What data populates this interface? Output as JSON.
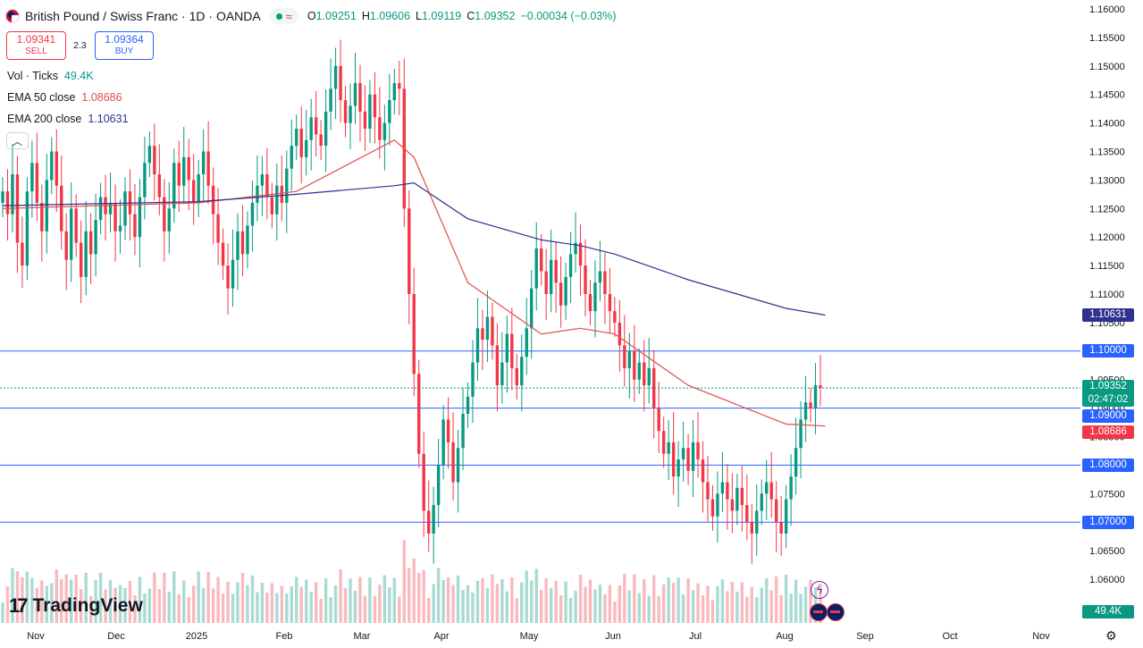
{
  "header": {
    "title": "British Pound / Swiss Franc · 1D · OANDA",
    "status_icon": "wave-icon",
    "ohlc": [
      {
        "k": "O",
        "v": "1.09251"
      },
      {
        "k": "H",
        "v": "1.09606"
      },
      {
        "k": "L",
        "v": "1.09119"
      },
      {
        "k": "C",
        "v": "1.09352"
      },
      {
        "k": "",
        "v": "−0.00034 (−0.03%)"
      }
    ]
  },
  "trade": {
    "sell_price": "1.09341",
    "sell_label": "SELL",
    "spread": "2.3",
    "buy_price": "1.09364",
    "buy_label": "BUY"
  },
  "legend": {
    "vol_label": "Vol · Ticks",
    "vol_value": "49.4K",
    "ema50_label": "EMA 50 close",
    "ema50_value": "1.08686",
    "ema200_label": "EMA 200 close",
    "ema200_value": "1.10631"
  },
  "branding": {
    "logo_text": "TradingView"
  },
  "price_tags": [
    {
      "text": "1.10631",
      "value": 1.10631,
      "color": "#2e3192"
    },
    {
      "text": "1.10000",
      "value": 1.1,
      "color": "#2962ff"
    },
    {
      "text": "1.09352",
      "sub": "02:47:02",
      "value": 1.09352,
      "color": "#089981"
    },
    {
      "text": "1.09000",
      "value": 1.09,
      "color": "#2962ff"
    },
    {
      "text": "1.08686",
      "value": 1.08686,
      "color": "#f23645"
    },
    {
      "text": "1.08000",
      "value": 1.08,
      "color": "#2962ff"
    },
    {
      "text": "1.07000",
      "value": 1.07,
      "color": "#2962ff"
    }
  ],
  "volume_tag": "49.4K",
  "colors": {
    "up": "#089981",
    "down": "#f23645",
    "ema50": "#e24c4c",
    "ema200": "#2e3192",
    "hline": "#2962ff"
  },
  "chart_data": {
    "type": "candlestick",
    "title": "British Pound / Swiss Franc · 1D · OANDA",
    "y_ticks": [
      "1.16000",
      "1.15500",
      "1.15000",
      "1.14500",
      "1.14000",
      "1.13500",
      "1.13000",
      "1.12500",
      "1.12000",
      "1.11500",
      "1.11000",
      "1.10500",
      "1.10000",
      "1.09500",
      "1.09000",
      "1.08500",
      "1.08000",
      "1.07500",
      "1.07000",
      "1.06500",
      "1.06000"
    ],
    "ylim": [
      1.06,
      1.16
    ],
    "x_labels": [
      "Nov",
      "Dec",
      "2025",
      "Feb",
      "Mar",
      "Apr",
      "May",
      "Jun",
      "Jul",
      "Aug",
      "Sep",
      "Oct",
      "Nov"
    ],
    "horizontal_lines": [
      1.1,
      1.09,
      1.08,
      1.07
    ],
    "last_price": 1.09352,
    "ema50_last": 1.08686,
    "ema200_last": 1.10631,
    "closes": [
      1.128,
      1.124,
      1.131,
      1.119,
      1.115,
      1.128,
      1.133,
      1.126,
      1.121,
      1.13,
      1.135,
      1.129,
      1.121,
      1.116,
      1.125,
      1.119,
      1.113,
      1.121,
      1.117,
      1.123,
      1.127,
      1.124,
      1.126,
      1.121,
      1.122,
      1.128,
      1.124,
      1.12,
      1.127,
      1.133,
      1.136,
      1.131,
      1.127,
      1.121,
      1.125,
      1.133,
      1.129,
      1.134,
      1.13,
      1.126,
      1.131,
      1.135,
      1.129,
      1.124,
      1.119,
      1.115,
      1.111,
      1.116,
      1.121,
      1.117,
      1.122,
      1.126,
      1.129,
      1.131,
      1.127,
      1.124,
      1.129,
      1.126,
      1.132,
      1.136,
      1.139,
      1.134,
      1.137,
      1.141,
      1.138,
      1.136,
      1.142,
      1.146,
      1.15,
      1.144,
      1.14,
      1.143,
      1.147,
      1.142,
      1.139,
      1.145,
      1.141,
      1.137,
      1.14,
      1.144,
      1.147,
      1.146,
      1.125,
      1.11,
      1.096,
      1.082,
      1.072,
      1.068,
      1.073,
      1.08,
      1.088,
      1.084,
      1.077,
      1.083,
      1.089,
      1.092,
      1.098,
      1.104,
      1.102,
      1.106,
      1.101,
      1.094,
      1.098,
      1.103,
      1.097,
      1.094,
      1.099,
      1.104,
      1.111,
      1.118,
      1.114,
      1.11,
      1.116,
      1.112,
      1.108,
      1.113,
      1.117,
      1.119,
      1.115,
      1.11,
      1.107,
      1.112,
      1.114,
      1.11,
      1.107,
      1.105,
      1.101,
      1.097,
      1.1,
      1.095,
      1.098,
      1.094,
      1.097,
      1.09,
      1.086,
      1.082,
      1.084,
      1.078,
      1.081,
      1.083,
      1.079,
      1.084,
      1.081,
      1.077,
      1.074,
      1.071,
      1.075,
      1.077,
      1.074,
      1.072,
      1.076,
      1.073,
      1.07,
      1.068,
      1.072,
      1.075,
      1.077,
      1.074,
      1.07,
      1.068,
      1.074,
      1.078,
      1.083,
      1.088,
      1.091,
      1.09,
      1.094,
      1.09352
    ],
    "ema50": [
      [
        0,
        1.125
      ],
      [
        40,
        1.126
      ],
      [
        60,
        1.128
      ],
      [
        80,
        1.137
      ],
      [
        84,
        1.134
      ],
      [
        95,
        1.112
      ],
      [
        110,
        1.103
      ],
      [
        118,
        1.104
      ],
      [
        125,
        1.103
      ],
      [
        140,
        1.094
      ],
      [
        160,
        1.0872
      ],
      [
        168,
        1.08686
      ]
    ],
    "ema200": [
      [
        0,
        1.1255
      ],
      [
        40,
        1.1262
      ],
      [
        60,
        1.1275
      ],
      [
        80,
        1.129
      ],
      [
        84,
        1.1295
      ],
      [
        95,
        1.1232
      ],
      [
        110,
        1.1195
      ],
      [
        118,
        1.1185
      ],
      [
        125,
        1.117
      ],
      [
        140,
        1.1125
      ],
      [
        160,
        1.1075
      ],
      [
        168,
        1.10631
      ]
    ],
    "volume_last": "49.4K"
  }
}
